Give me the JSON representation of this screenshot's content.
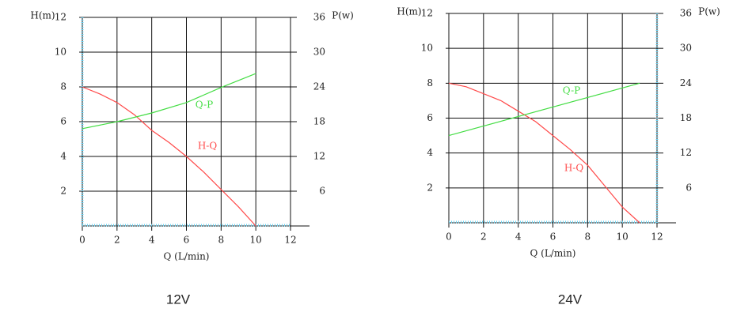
{
  "chart_data": [
    {
      "type": "line",
      "caption": "12V",
      "x_label": "Q (L/min)",
      "y_label": "H(m)",
      "y2_label": "P(w)",
      "xlim": [
        0,
        12
      ],
      "xticks": [
        0,
        2,
        4,
        6,
        8,
        10,
        12
      ],
      "ylim": [
        0,
        12
      ],
      "yticks": [
        2,
        4,
        6,
        8,
        10,
        12
      ],
      "y2lim": [
        0,
        36
      ],
      "y2ticks": [
        6,
        12,
        18,
        24,
        30,
        36
      ],
      "grid": true,
      "series": [
        {
          "name": "H-Q",
          "color": "#ff4a4a",
          "x": [
            0,
            1,
            2,
            3,
            4,
            5,
            6,
            7,
            8,
            9,
            10
          ],
          "values": [
            8,
            7.6,
            7.1,
            6.4,
            5.5,
            4.8,
            4.0,
            3.1,
            2.1,
            1.1,
            0
          ]
        },
        {
          "name": "Q-P",
          "color": "#44dd44",
          "axis": "y2",
          "x": [
            0,
            2,
            4,
            6,
            8,
            10
          ],
          "values": [
            16.8,
            18,
            19.5,
            21.3,
            23.9,
            26.3
          ]
        }
      ]
    },
    {
      "type": "line",
      "caption": "24V",
      "x_label": "Q (L/min)",
      "y_label": "H(m)",
      "y2_label": "P(w)",
      "xlim": [
        0,
        12
      ],
      "xticks": [
        0,
        2,
        4,
        6,
        8,
        10,
        12
      ],
      "ylim": [
        0,
        12
      ],
      "yticks": [
        2,
        4,
        6,
        8,
        10,
        12
      ],
      "y2lim": [
        0,
        36
      ],
      "y2ticks": [
        6,
        12,
        18,
        24,
        30,
        36
      ],
      "grid": true,
      "series": [
        {
          "name": "H-Q",
          "color": "#ff4a4a",
          "x": [
            0,
            1,
            2,
            3,
            4,
            5,
            6,
            7,
            8,
            9,
            10,
            11
          ],
          "values": [
            8,
            7.8,
            7.4,
            7.0,
            6.4,
            5.8,
            5.0,
            4.2,
            3.3,
            2.1,
            0.9,
            0
          ]
        },
        {
          "name": "Q-P",
          "color": "#44dd44",
          "axis": "y2",
          "x": [
            0,
            11
          ],
          "values": [
            15,
            24
          ]
        }
      ]
    }
  ]
}
